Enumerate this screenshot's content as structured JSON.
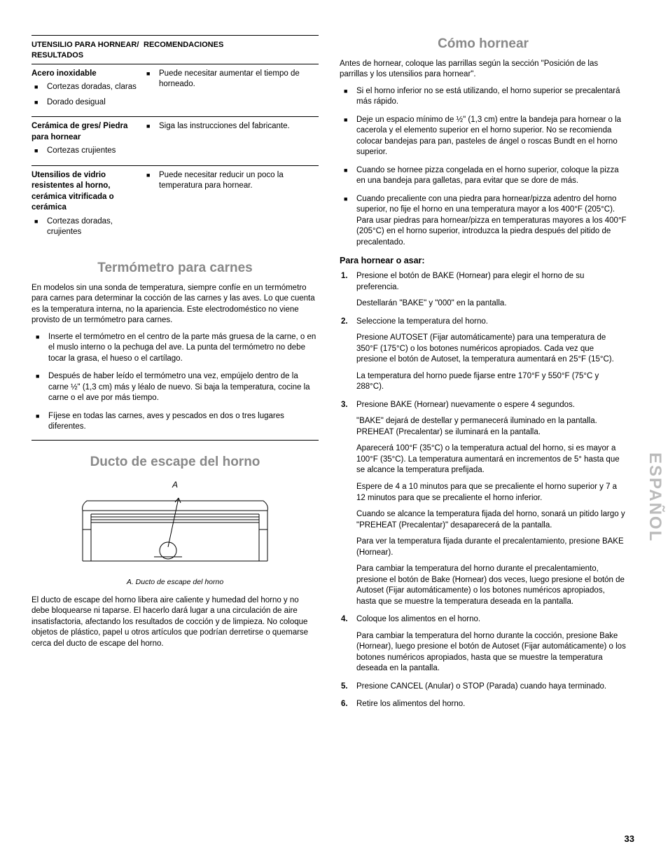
{
  "table": {
    "header_left": "UTENSILIO PARA HORNEAR/ RESULTADOS",
    "header_right": "RECOMENDACIONES",
    "rows": [
      {
        "material": "Acero inoxidable",
        "results": [
          "Cortezas doradas, claras",
          "Dorado desigual"
        ],
        "recs": [
          "Puede necesitar aumentar el tiempo de horneado."
        ]
      },
      {
        "material": "Cerámica de gres/ Piedra para hornear",
        "results": [
          "Cortezas crujientes"
        ],
        "recs": [
          "Siga las instrucciones del fabricante."
        ]
      },
      {
        "material": "Utensilios de vidrio resistentes al horno, cerámica vitrificada o cerámica",
        "results": [
          "Cortezas doradas, crujientes"
        ],
        "recs": [
          "Puede necesitar reducir un poco la temperatura para hornear."
        ]
      }
    ]
  },
  "thermo": {
    "title": "Termómetro para carnes",
    "intro": "En modelos sin una sonda de temperatura, siempre confíe en un termómetro para carnes para determinar la cocción de las carnes y las aves. Lo que cuenta es la temperatura interna, no la apariencia. Este electrodoméstico no viene provisto de un termómetro para carnes.",
    "bullets": [
      "Inserte el termómetro en el centro de la parte más gruesa de la carne, o en el muslo interno o la pechuga del ave. La punta del termómetro no debe tocar la grasa, el hueso o el cartílago.",
      "Después de haber leído el termómetro una vez, empújelo dentro de la carne ½\" (1,3 cm) más y léalo de nuevo. Si baja la temperatura, cocine la carne o el ave por más tiempo.",
      "Fíjese en todas las carnes, aves y pescados en dos o tres lugares diferentes."
    ]
  },
  "vent": {
    "title": "Ducto de escape del horno",
    "caption": "A. Ducto de escape del horno",
    "letterA": "A",
    "body": "El ducto de escape del horno libera aire caliente y humedad del horno y no debe bloquearse ni taparse. El hacerlo dará lugar a una circulación de aire insatisfactoria, afectando los resultados de cocción y de limpieza. No coloque objetos de plástico, papel u otros artículos que podrían derretirse o quemarse cerca del ducto de escape del horno."
  },
  "bake": {
    "title": "Cómo hornear",
    "intro": "Antes de hornear, coloque las parrillas según la sección \"Posición de las parrillas y los utensilios para hornear\".",
    "bullets": [
      "Si el horno inferior no se está utilizando, el horno superior se precalentará más rápido.",
      "Deje un espacio mínimo de ½\" (1,3 cm) entre la bandeja para hornear o la cacerola y el elemento superior en el horno superior. No se recomienda colocar bandejas para pan, pasteles de ángel o roscas Bundt en el horno superior.",
      "Cuando se hornee pizza congelada en el horno superior, coloque la pizza en una bandeja para galletas, para evitar que se dore de más.",
      "Cuando precaliente con una piedra para hornear/pizza adentro del horno superior, no fije el horno en una temperatura mayor a los 400°F (205°C). Para usar piedras para hornear/pizza en temperaturas mayores a los 400°F (205°C) en el horno superior, introduzca la piedra después del pitido de precalentado."
    ],
    "sub_head": "Para hornear o asar:",
    "steps": [
      {
        "text": "Presione el botón de BAKE (Hornear) para elegir el horno de su preferencia.",
        "paras": [
          "Destellarán \"BAKE\" y \"000\" en la pantalla."
        ]
      },
      {
        "text": "Seleccione la temperatura del horno.",
        "paras": [
          "Presione AUTOSET (Fijar automáticamente) para una temperatura de 350°F (175°C) o los botones numéricos apropiados. Cada vez que presione el botón de Autoset, la temperatura aumentará en 25°F (15°C).",
          "La temperatura del horno puede fijarse entre 170°F y 550°F (75°C y 288°C)."
        ]
      },
      {
        "text": "Presione BAKE (Hornear) nuevamente o espere 4 segundos.",
        "paras": [
          "\"BAKE\" dejará de destellar y permanecerá iluminado en la pantalla. PREHEAT (Precalentar) se iluminará en la pantalla.",
          "Aparecerá 100°F (35°C) o la temperatura actual del horno, si es mayor a 100°F (35°C). La temperatura aumentará en incrementos de 5° hasta que se alcance la temperatura prefijada.",
          "Espere de 4 a 10 minutos para que se precaliente el horno superior y 7 a 12 minutos para que se precaliente el horno inferior.",
          "Cuando se alcance la temperatura fijada del horno, sonará un pitido largo y \"PREHEAT (Precalentar)\" desaparecerá de la pantalla.",
          "Para ver la temperatura fijada durante el precalentamiento, presione BAKE (Hornear).",
          "Para cambiar la temperatura del horno durante el precalentamiento, presione el botón de Bake (Hornear) dos veces, luego presione el botón de Autoset (Fijar automáticamente) o los botones numéricos apropiados, hasta que se muestre la temperatura deseada en la pantalla."
        ]
      },
      {
        "text": "Coloque los alimentos en el horno.",
        "paras": [
          "Para cambiar la temperatura del horno durante la cocción, presione Bake (Hornear), luego presione el botón de Autoset (Fijar automáticamente) o los botones numéricos apropiados, hasta que se muestre la temperatura deseada en la pantalla."
        ]
      },
      {
        "text": "Presione CANCEL (Anular) o STOP (Parada) cuando haya terminado.",
        "paras": []
      },
      {
        "text": "Retire los alimentos del horno.",
        "paras": []
      }
    ]
  },
  "side_tab": "ESPAÑOL",
  "page_number": "33"
}
